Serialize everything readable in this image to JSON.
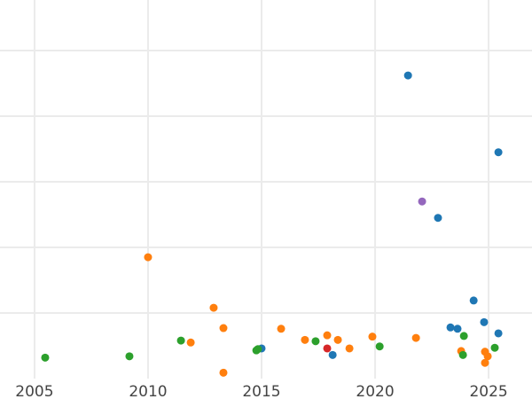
{
  "chart_data": {
    "type": "scatter",
    "title": "",
    "xlabel": "",
    "ylabel": "",
    "xlim": [
      2003.48,
      2026.91
    ],
    "ylim": [
      0,
      5.77
    ],
    "x_ticks": [
      2005,
      2010,
      2015,
      2020,
      2025
    ],
    "x_tick_labels": [
      "2005",
      "2010",
      "2015",
      "2020",
      "2025"
    ],
    "y_gridlines": [
      1,
      2,
      3,
      4,
      5
    ],
    "grid": true,
    "series": [
      {
        "color": "#1f77b4",
        "points": [
          [
            2021.45,
            4.62
          ],
          [
            2025.43,
            3.45
          ],
          [
            2022.77,
            2.45
          ],
          [
            2024.34,
            1.19
          ],
          [
            2024.8,
            0.86
          ],
          [
            2023.32,
            0.78
          ],
          [
            2023.63,
            0.76
          ],
          [
            2025.43,
            0.69
          ],
          [
            2015.0,
            0.46
          ],
          [
            2018.13,
            0.36
          ]
        ]
      },
      {
        "color": "#9467bd",
        "points": [
          [
            2022.07,
            2.7
          ]
        ]
      },
      {
        "color": "#ff7f0e",
        "points": [
          [
            2010.0,
            1.85
          ],
          [
            2012.89,
            1.08
          ],
          [
            2013.32,
            0.77
          ],
          [
            2015.86,
            0.76
          ],
          [
            2011.88,
            0.55
          ],
          [
            2016.91,
            0.59
          ],
          [
            2017.89,
            0.66
          ],
          [
            2018.36,
            0.59
          ],
          [
            2018.87,
            0.46
          ],
          [
            2019.88,
            0.64
          ],
          [
            2021.8,
            0.62
          ],
          [
            2023.79,
            0.42
          ],
          [
            2024.84,
            0.41
          ],
          [
            2024.96,
            0.34
          ],
          [
            2024.84,
            0.24
          ],
          [
            2013.32,
            0.09
          ]
        ]
      },
      {
        "color": "#2ca02c",
        "points": [
          [
            2005.47,
            0.32
          ],
          [
            2009.18,
            0.34
          ],
          [
            2011.45,
            0.58
          ],
          [
            2014.77,
            0.43
          ],
          [
            2014.84,
            0.45
          ],
          [
            2017.38,
            0.57
          ],
          [
            2020.2,
            0.49
          ],
          [
            2023.91,
            0.65
          ],
          [
            2023.87,
            0.36
          ],
          [
            2025.27,
            0.47
          ]
        ]
      },
      {
        "color": "#d62728",
        "points": [
          [
            2017.89,
            0.46
          ]
        ]
      }
    ]
  }
}
